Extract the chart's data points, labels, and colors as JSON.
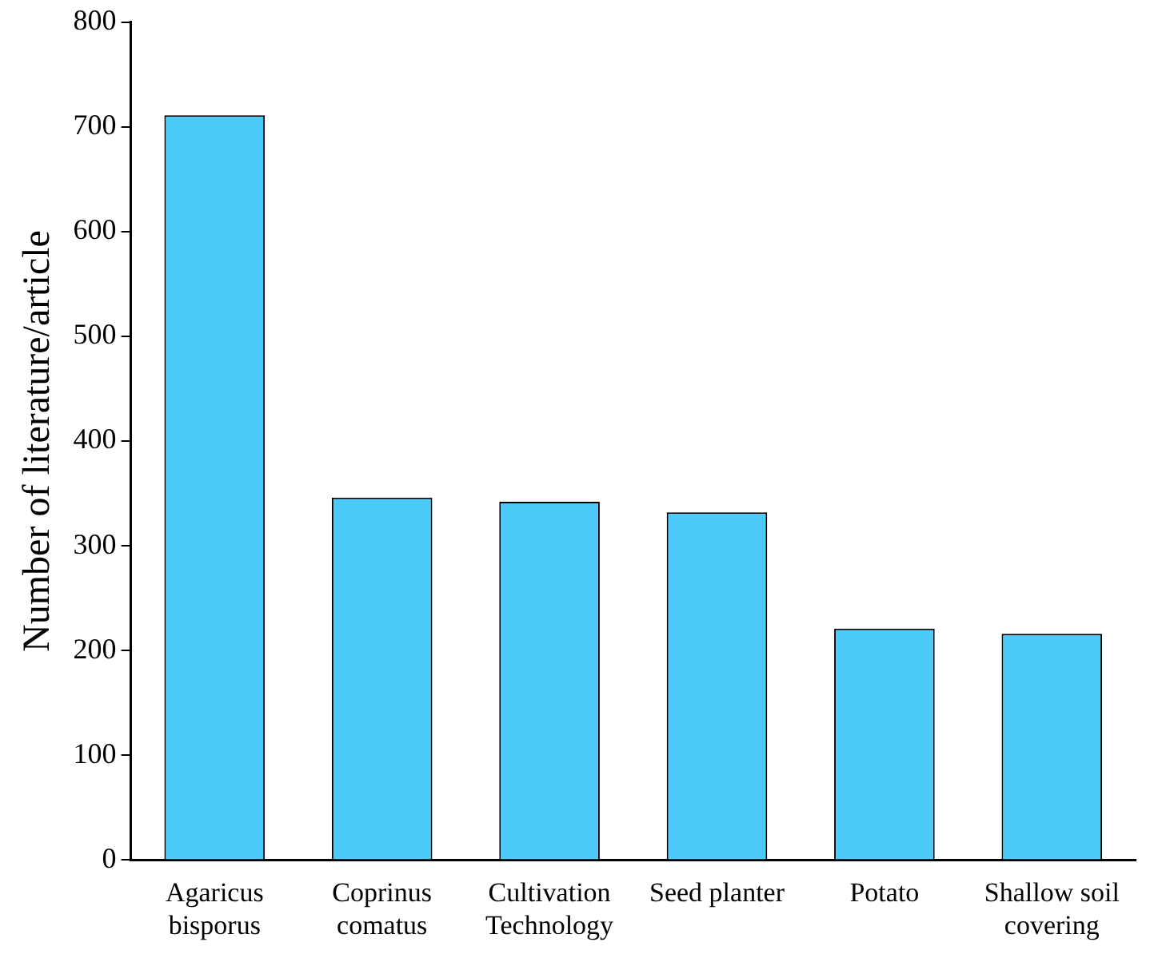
{
  "chart_data": {
    "type": "bar",
    "ylabel": "Number of literature/article",
    "categories": [
      "Agaricus\nbisporus",
      "Coprinus\ncomatus",
      "Cultivation\nTechnology",
      "Seed planter",
      "Potato",
      "Shallow soil\ncovering"
    ],
    "values": [
      711,
      346,
      342,
      332,
      221,
      216
    ],
    "color": "#4dcbf8",
    "ylim": [
      0,
      800
    ],
    "yticks": [
      0,
      100,
      200,
      300,
      400,
      500,
      600,
      700,
      800
    ],
    "grid": false,
    "legend": false
  }
}
